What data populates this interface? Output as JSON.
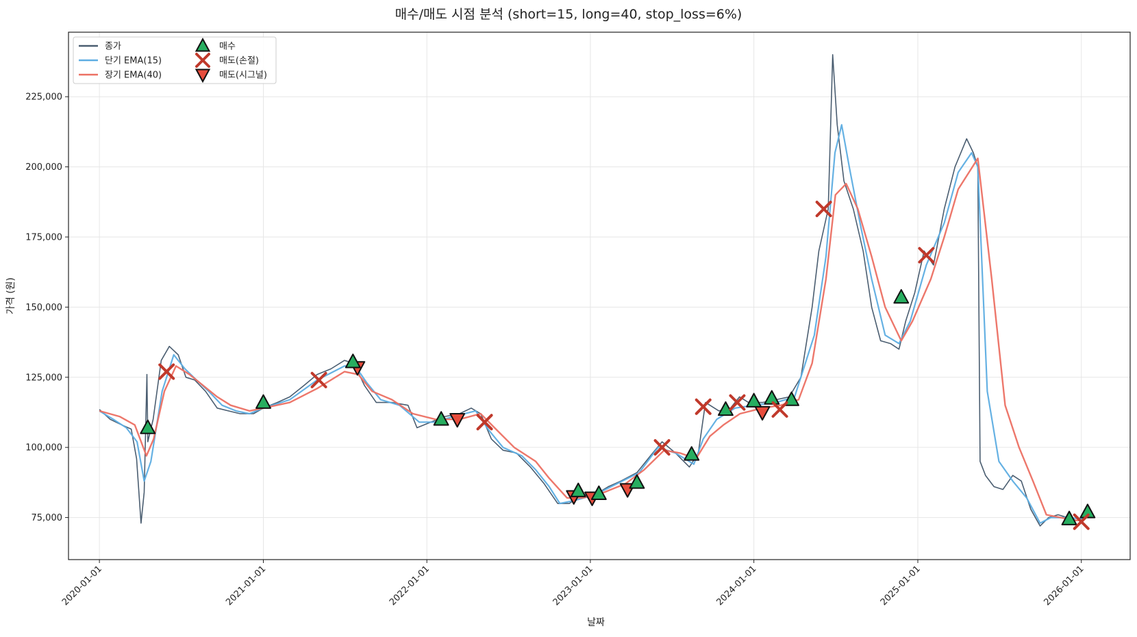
{
  "chart_data": {
    "type": "line",
    "title": "매수/매도 시점 분석 (short=15, long=40, stop_loss=6%)",
    "xlabel": "날짜",
    "ylabel": "가격 (원)",
    "ylim": [
      60000,
      248000
    ],
    "x_range": [
      "2019-10-24",
      "2026-04-20"
    ],
    "x_tick_labels": [
      "2020-01-01",
      "2021-01-01",
      "2022-01-01",
      "2023-01-01",
      "2024-01-01",
      "2025-01-01",
      "2026-01-01"
    ],
    "y_ticks": [
      75000,
      100000,
      125000,
      150000,
      175000,
      200000,
      225000
    ],
    "y_tick_labels": [
      "75,000",
      "100,000",
      "125,000",
      "150,000",
      "175,000",
      "200,000",
      "225,000"
    ],
    "grid": true,
    "legend_position": "top-left",
    "colors": {
      "close": "#4a5d70",
      "ema_short": "#5dade2",
      "ema_long": "#ec7063",
      "buy": "#27ae60",
      "sell_stop": "#c0392b",
      "sell_signal": "#e74c3c"
    },
    "legend": [
      {
        "label": "종가",
        "kind": "line",
        "color": "#4a5d70"
      },
      {
        "label": "단기 EMA(15)",
        "kind": "line",
        "color": "#5dade2"
      },
      {
        "label": "장기 EMA(40)",
        "kind": "line",
        "color": "#ec7063"
      },
      {
        "label": "매수",
        "kind": "triangle-up",
        "color": "#27ae60"
      },
      {
        "label": "매도(손절)",
        "kind": "x",
        "color": "#c0392b"
      },
      {
        "label": "매도(시그널)",
        "kind": "triangle-down",
        "color": "#e74c3c"
      }
    ],
    "series": [
      {
        "name": "종가",
        "points": [
          [
            "2020-01-01",
            113500
          ],
          [
            "2020-01-25",
            110000
          ],
          [
            "2020-02-20",
            108000
          ],
          [
            "2020-03-12",
            106500
          ],
          [
            "2020-03-24",
            96000
          ],
          [
            "2020-04-03",
            73000
          ],
          [
            "2020-04-10",
            84000
          ],
          [
            "2020-04-16",
            126000
          ],
          [
            "2020-04-18",
            102000
          ],
          [
            "2020-04-30",
            110000
          ],
          [
            "2020-05-18",
            131000
          ],
          [
            "2020-06-05",
            136000
          ],
          [
            "2020-06-25",
            133000
          ],
          [
            "2020-07-12",
            125000
          ],
          [
            "2020-08-01",
            124000
          ],
          [
            "2020-08-25",
            120000
          ],
          [
            "2020-09-20",
            114000
          ],
          [
            "2020-10-15",
            113000
          ],
          [
            "2020-11-10",
            112000
          ],
          [
            "2020-12-10",
            112000
          ],
          [
            "2021-01-01",
            114000
          ],
          [
            "2021-02-01",
            116000
          ],
          [
            "2021-03-01",
            118000
          ],
          [
            "2021-04-01",
            122000
          ],
          [
            "2021-05-01",
            126000
          ],
          [
            "2021-06-01",
            128000
          ],
          [
            "2021-07-01",
            131000
          ],
          [
            "2021-07-22",
            130000
          ],
          [
            "2021-08-15",
            122000
          ],
          [
            "2021-09-10",
            116000
          ],
          [
            "2021-10-15",
            116000
          ],
          [
            "2021-11-20",
            115000
          ],
          [
            "2021-12-10",
            107000
          ],
          [
            "2022-01-10",
            109000
          ],
          [
            "2022-02-10",
            111000
          ],
          [
            "2022-03-15",
            112000
          ],
          [
            "2022-04-10",
            114000
          ],
          [
            "2022-05-01",
            112000
          ],
          [
            "2022-05-25",
            103000
          ],
          [
            "2022-06-20",
            99000
          ],
          [
            "2022-07-20",
            98000
          ],
          [
            "2022-08-20",
            93000
          ],
          [
            "2022-09-20",
            87000
          ],
          [
            "2022-10-20",
            80000
          ],
          [
            "2022-11-15",
            80000
          ],
          [
            "2022-12-10",
            83000
          ],
          [
            "2023-01-10",
            83000
          ],
          [
            "2023-02-10",
            86000
          ],
          [
            "2023-03-10",
            88000
          ],
          [
            "2023-04-15",
            91000
          ],
          [
            "2023-05-15",
            97000
          ],
          [
            "2023-06-10",
            102000
          ],
          [
            "2023-07-10",
            98000
          ],
          [
            "2023-08-10",
            93000
          ],
          [
            "2023-08-30",
            98000
          ],
          [
            "2023-09-15",
            116000
          ],
          [
            "2023-10-15",
            113000
          ],
          [
            "2023-11-10",
            114000
          ],
          [
            "2023-11-30",
            118000
          ],
          [
            "2023-12-20",
            116000
          ],
          [
            "2024-01-20",
            116000
          ],
          [
            "2024-02-20",
            117000
          ],
          [
            "2024-03-20",
            118000
          ],
          [
            "2024-04-15",
            125000
          ],
          [
            "2024-05-10",
            150000
          ],
          [
            "2024-05-25",
            170000
          ],
          [
            "2024-06-15",
            185000
          ],
          [
            "2024-06-25",
            240000
          ],
          [
            "2024-07-05",
            215000
          ],
          [
            "2024-07-20",
            195000
          ],
          [
            "2024-08-10",
            185000
          ],
          [
            "2024-09-01",
            170000
          ],
          [
            "2024-09-20",
            150000
          ],
          [
            "2024-10-10",
            138000
          ],
          [
            "2024-11-01",
            137000
          ],
          [
            "2024-11-20",
            135000
          ],
          [
            "2024-12-05",
            145000
          ],
          [
            "2024-12-25",
            155000
          ],
          [
            "2025-01-15",
            170000
          ],
          [
            "2025-02-05",
            165000
          ],
          [
            "2025-03-01",
            185000
          ],
          [
            "2025-03-25",
            200000
          ],
          [
            "2025-04-20",
            210000
          ],
          [
            "2025-05-05",
            205000
          ],
          [
            "2025-05-15",
            200000
          ],
          [
            "2025-05-20",
            95000
          ],
          [
            "2025-06-01",
            90000
          ],
          [
            "2025-06-20",
            86000
          ],
          [
            "2025-07-10",
            85000
          ],
          [
            "2025-08-01",
            90000
          ],
          [
            "2025-08-20",
            88000
          ],
          [
            "2025-09-10",
            78000
          ],
          [
            "2025-10-01",
            72000
          ],
          [
            "2025-10-20",
            75000
          ],
          [
            "2025-11-10",
            76000
          ],
          [
            "2025-12-01",
            75000
          ],
          [
            "2025-12-20",
            74000
          ],
          [
            "2026-01-05",
            75000
          ],
          [
            "2026-01-20",
            78000
          ]
        ]
      },
      {
        "name": "단기 EMA(15)",
        "points": [
          [
            "2020-01-01",
            113000
          ],
          [
            "2020-02-01",
            110000
          ],
          [
            "2020-03-01",
            107000
          ],
          [
            "2020-03-25",
            102000
          ],
          [
            "2020-04-10",
            88000
          ],
          [
            "2020-04-25",
            95000
          ],
          [
            "2020-05-20",
            120000
          ],
          [
            "2020-06-15",
            133000
          ],
          [
            "2020-07-10",
            128000
          ],
          [
            "2020-08-05",
            124000
          ],
          [
            "2020-09-01",
            120000
          ],
          [
            "2020-10-01",
            115000
          ],
          [
            "2020-11-01",
            113000
          ],
          [
            "2020-12-01",
            112000
          ],
          [
            "2021-01-01",
            114000
          ],
          [
            "2021-03-01",
            117000
          ],
          [
            "2021-05-01",
            124000
          ],
          [
            "2021-07-01",
            129000
          ],
          [
            "2021-07-25",
            129000
          ],
          [
            "2021-08-20",
            123000
          ],
          [
            "2021-09-20",
            117000
          ],
          [
            "2021-11-01",
            115000
          ],
          [
            "2021-12-15",
            109000
          ],
          [
            "2022-01-20",
            109000
          ],
          [
            "2022-03-01",
            111000
          ],
          [
            "2022-04-20",
            113000
          ],
          [
            "2022-05-20",
            106000
          ],
          [
            "2022-06-20",
            100000
          ],
          [
            "2022-08-01",
            97000
          ],
          [
            "2022-09-01",
            92000
          ],
          [
            "2022-10-01",
            86000
          ],
          [
            "2022-10-25",
            80000
          ],
          [
            "2022-11-25",
            81000
          ],
          [
            "2023-01-10",
            83000
          ],
          [
            "2023-03-01",
            87000
          ],
          [
            "2023-04-20",
            91000
          ],
          [
            "2023-06-01",
            100000
          ],
          [
            "2023-07-10",
            98000
          ],
          [
            "2023-08-20",
            94000
          ],
          [
            "2023-09-10",
            103000
          ],
          [
            "2023-10-10",
            110000
          ],
          [
            "2023-11-20",
            114000
          ],
          [
            "2024-01-01",
            115000
          ],
          [
            "2024-02-20",
            116000
          ],
          [
            "2024-04-01",
            118000
          ],
          [
            "2024-05-15",
            140000
          ],
          [
            "2024-06-10",
            168000
          ],
          [
            "2024-06-30",
            205000
          ],
          [
            "2024-07-15",
            215000
          ],
          [
            "2024-08-01",
            200000
          ],
          [
            "2024-08-25",
            180000
          ],
          [
            "2024-09-20",
            160000
          ],
          [
            "2024-10-20",
            140000
          ],
          [
            "2024-11-20",
            137000
          ],
          [
            "2024-12-15",
            145000
          ],
          [
            "2025-01-20",
            165000
          ],
          [
            "2025-03-01",
            180000
          ],
          [
            "2025-04-01",
            198000
          ],
          [
            "2025-05-01",
            205000
          ],
          [
            "2025-05-15",
            200000
          ],
          [
            "2025-06-05",
            120000
          ],
          [
            "2025-07-01",
            95000
          ],
          [
            "2025-08-01",
            88000
          ],
          [
            "2025-09-01",
            82000
          ],
          [
            "2025-10-01",
            73000
          ],
          [
            "2025-10-25",
            75000
          ],
          [
            "2025-12-01",
            75000
          ],
          [
            "2026-01-05",
            74500
          ]
        ]
      },
      {
        "name": "장기 EMA(40)",
        "points": [
          [
            "2020-01-01",
            113000
          ],
          [
            "2020-02-15",
            111000
          ],
          [
            "2020-03-20",
            108000
          ],
          [
            "2020-04-15",
            97000
          ],
          [
            "2020-05-01",
            103000
          ],
          [
            "2020-05-25",
            120000
          ],
          [
            "2020-06-20",
            129000
          ],
          [
            "2020-07-20",
            126000
          ],
          [
            "2020-08-20",
            122000
          ],
          [
            "2020-09-20",
            118000
          ],
          [
            "2020-10-20",
            115000
          ],
          [
            "2020-12-01",
            113000
          ],
          [
            "2021-01-01",
            114000
          ],
          [
            "2021-03-01",
            116000
          ],
          [
            "2021-05-01",
            121000
          ],
          [
            "2021-07-01",
            127000
          ],
          [
            "2021-08-01",
            126000
          ],
          [
            "2021-09-01",
            120000
          ],
          [
            "2021-10-15",
            117000
          ],
          [
            "2021-12-01",
            112000
          ],
          [
            "2022-01-20",
            110000
          ],
          [
            "2022-03-15",
            110000
          ],
          [
            "2022-05-01",
            112000
          ],
          [
            "2022-06-01",
            107000
          ],
          [
            "2022-07-15",
            100000
          ],
          [
            "2022-09-01",
            95000
          ],
          [
            "2022-10-01",
            89000
          ],
          [
            "2022-11-10",
            82000
          ],
          [
            "2022-12-15",
            82000
          ],
          [
            "2023-02-01",
            84000
          ],
          [
            "2023-03-20",
            87000
          ],
          [
            "2023-05-01",
            92000
          ],
          [
            "2023-06-15",
            99000
          ],
          [
            "2023-07-20",
            98000
          ],
          [
            "2023-08-25",
            96000
          ],
          [
            "2023-09-25",
            104000
          ],
          [
            "2023-10-25",
            108000
          ],
          [
            "2023-12-01",
            112000
          ],
          [
            "2024-01-20",
            114000
          ],
          [
            "2024-03-01",
            115000
          ],
          [
            "2024-04-10",
            117000
          ],
          [
            "2024-05-10",
            130000
          ],
          [
            "2024-06-10",
            160000
          ],
          [
            "2024-07-01",
            190000
          ],
          [
            "2024-07-25",
            194000
          ],
          [
            "2024-08-20",
            185000
          ],
          [
            "2024-09-20",
            168000
          ],
          [
            "2024-10-20",
            150000
          ],
          [
            "2024-11-25",
            138000
          ],
          [
            "2024-12-20",
            145000
          ],
          [
            "2025-01-30",
            160000
          ],
          [
            "2025-03-01",
            175000
          ],
          [
            "2025-04-01",
            192000
          ],
          [
            "2025-05-15",
            203000
          ],
          [
            "2025-06-15",
            160000
          ],
          [
            "2025-07-15",
            115000
          ],
          [
            "2025-08-15",
            100000
          ],
          [
            "2025-09-15",
            88000
          ],
          [
            "2025-10-15",
            76000
          ],
          [
            "2025-11-15",
            75000
          ],
          [
            "2025-12-20",
            74000
          ],
          [
            "2026-01-05",
            74000
          ]
        ]
      }
    ],
    "buy_points": [
      [
        "2020-04-18",
        107000
      ],
      [
        "2021-01-01",
        116000
      ],
      [
        "2021-07-20",
        130500
      ],
      [
        "2022-02-02",
        110000
      ],
      [
        "2022-12-05",
        84500
      ],
      [
        "2023-01-20",
        83500
      ],
      [
        "2023-04-15",
        87500
      ],
      [
        "2023-08-15",
        97500
      ],
      [
        "2023-10-30",
        113500
      ],
      [
        "2024-01-01",
        116500
      ],
      [
        "2024-02-10",
        117500
      ],
      [
        "2024-03-25",
        117000
      ],
      [
        "2024-11-25",
        153500
      ],
      [
        "2025-12-05",
        74500
      ],
      [
        "2026-01-15",
        77000
      ]
    ],
    "sell_stop_points": [
      [
        "2020-05-30",
        127000
      ],
      [
        "2021-05-05",
        124000
      ],
      [
        "2022-05-10",
        109000
      ],
      [
        "2023-06-10",
        100000
      ],
      [
        "2023-09-10",
        114500
      ],
      [
        "2023-11-25",
        116000
      ],
      [
        "2024-02-28",
        113500
      ],
      [
        "2024-06-05",
        185000
      ],
      [
        "2025-01-20",
        168500
      ],
      [
        "2026-01-01",
        73500
      ]
    ],
    "sell_signal_points": [
      [
        "2021-07-30",
        128500
      ],
      [
        "2022-03-10",
        110000
      ],
      [
        "2022-11-25",
        82500
      ],
      [
        "2023-01-05",
        82000
      ],
      [
        "2023-03-25",
        85000
      ],
      [
        "2024-01-20",
        112500
      ]
    ]
  }
}
